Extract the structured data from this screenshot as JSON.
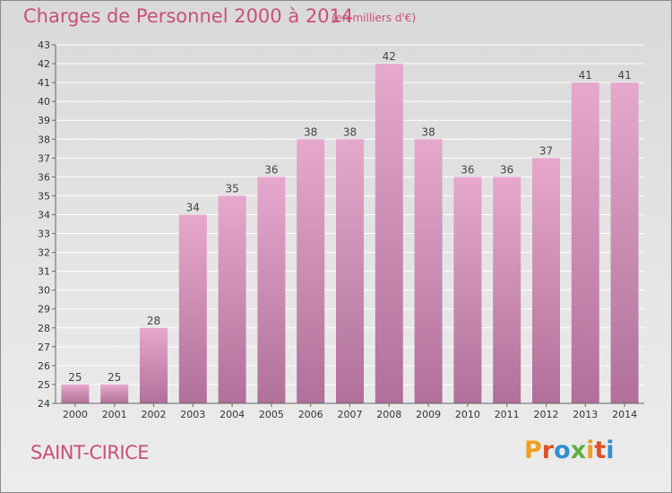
{
  "header": {
    "title": "Charges de Personnel 2000 à 2014",
    "subtitle": "(en milliers d'€)"
  },
  "footer": {
    "commune": "SAINT-CIRICE",
    "logo": "Proxiti"
  },
  "colors": {
    "bar_top": "#e6a8cd",
    "bar_bottom": "#b0709a",
    "title": "#c8507a",
    "logo": [
      "#f0a020",
      "#e0502a",
      "#3090d0",
      "#60b040",
      "#f0a020",
      "#e0502a",
      "#3090d0"
    ]
  },
  "chart_data": {
    "type": "bar",
    "categories": [
      "2000",
      "2001",
      "2002",
      "2003",
      "2004",
      "2005",
      "2006",
      "2007",
      "2008",
      "2009",
      "2010",
      "2011",
      "2012",
      "2013",
      "2014"
    ],
    "values": [
      25,
      25,
      28,
      34,
      35,
      36,
      38,
      38,
      42,
      38,
      36,
      36,
      37,
      41,
      41
    ],
    "title": "Charges de Personnel 2000 à 2014",
    "subtitle": "(en milliers d'€)",
    "ylim": [
      24,
      43
    ],
    "yticks": [
      24,
      25,
      26,
      27,
      28,
      29,
      30,
      31,
      32,
      33,
      34,
      35,
      36,
      37,
      38,
      39,
      40,
      41,
      42,
      43
    ],
    "grid": true,
    "data_labels": true
  }
}
